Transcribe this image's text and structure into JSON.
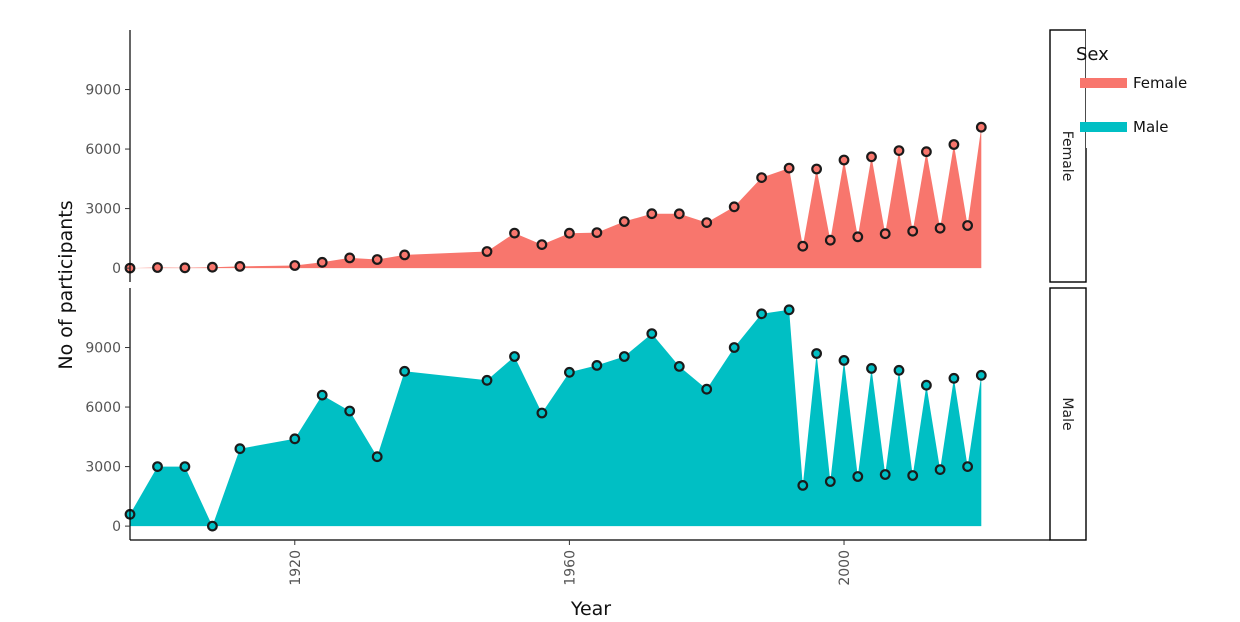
{
  "chart_data": {
    "type": "area",
    "xlabel": "Year",
    "ylabel": "No of participants",
    "xlim": [
      1896,
      2030
    ],
    "xticks": [
      "1920",
      "1960",
      "2000"
    ],
    "yticks": [
      "0",
      "3000",
      "6000",
      "9000"
    ],
    "facets": [
      {
        "name": "Female",
        "color": "#F8766D",
        "ylim": [
          -700,
          12000
        ],
        "x": [
          1896,
          1900,
          1904,
          1908,
          1912,
          1920,
          1924,
          1928,
          1932,
          1936,
          1948,
          1952,
          1956,
          1960,
          1964,
          1968,
          1972,
          1976,
          1980,
          1984,
          1988,
          1992,
          1994,
          1996,
          1998,
          2000,
          2002,
          2004,
          2006,
          2008,
          2010,
          2012,
          2014,
          2016,
          2018,
          2020
        ],
        "values": [
          0,
          33,
          16,
          47,
          87,
          134,
          292,
          514,
          433,
          667,
          839,
          1763,
          1186,
          1759,
          1791,
          2347,
          2744,
          2739,
          2294,
          3091,
          4562,
          5041,
          1104,
          4996,
          1409,
          5450,
          1577,
          5610,
          1736,
          5922,
          1860,
          5869,
          2011,
          6229,
          2149,
          7100
        ]
      },
      {
        "name": "Male",
        "color": "#00BFC4",
        "ylim": [
          -700,
          12000
        ],
        "x": [
          1896,
          1900,
          1904,
          1908,
          1912,
          1920,
          1924,
          1928,
          1932,
          1936,
          1948,
          1952,
          1956,
          1960,
          1964,
          1968,
          1972,
          1976,
          1980,
          1984,
          1988,
          1992,
          1994,
          1996,
          1998,
          2000,
          2002,
          2004,
          2006,
          2008,
          2010,
          2012,
          2014,
          2016,
          2018,
          2020
        ],
        "values": [
          594,
          3000,
          3000,
          0,
          3900,
          4400,
          6600,
          5800,
          3500,
          7800,
          7350,
          8550,
          5700,
          7750,
          8100,
          8550,
          9700,
          8050,
          6900,
          9000,
          10700,
          10900,
          2050,
          8700,
          2250,
          8350,
          2500,
          7950,
          2600,
          7850,
          2550,
          7100,
          2850,
          7450,
          3000,
          7600
        ]
      }
    ],
    "legend": {
      "title": "Sex",
      "position": "right",
      "items": [
        {
          "label": "Female",
          "color": "#F8766D"
        },
        {
          "label": "Male",
          "color": "#00BFC4"
        }
      ]
    }
  }
}
